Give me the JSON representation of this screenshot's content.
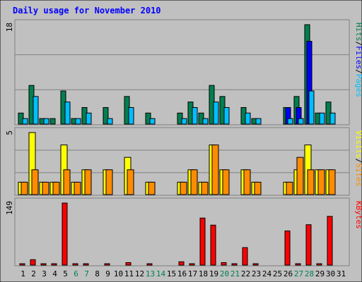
{
  "chart_data": {
    "type": "bar",
    "title": "Daily usage for November 2010",
    "days": [
      1,
      2,
      3,
      4,
      5,
      6,
      7,
      8,
      9,
      10,
      11,
      12,
      13,
      14,
      15,
      16,
      17,
      18,
      19,
      20,
      21,
      22,
      23,
      24,
      25,
      26,
      27,
      28,
      29,
      30,
      31
    ],
    "weekend_days": [
      6,
      7,
      13,
      14,
      20,
      21,
      27,
      28
    ],
    "panels": [
      {
        "id": "top",
        "ymax": 18,
        "ymax_label": "18",
        "series": [
          {
            "name": "Hits",
            "color": "#007f4f",
            "values": [
              2,
              7,
              1,
              1,
              6,
              1,
              3,
              0,
              3,
              0,
              5,
              0,
              2,
              0,
              0,
              2,
              4,
              2,
              7,
              5,
              0,
              3,
              1,
              0,
              0,
              3,
              5,
              18,
              2,
              4,
              0
            ]
          },
          {
            "name": "Files",
            "color": "#0000ff",
            "values": [
              0,
              0,
              0,
              0,
              0,
              0,
              0,
              0,
              0,
              0,
              0,
              0,
              0,
              0,
              0,
              0,
              0,
              0,
              0,
              0,
              0,
              0,
              0,
              0,
              0,
              3,
              3,
              15,
              0,
              0,
              0
            ]
          },
          {
            "name": "Pages",
            "color": "#00bfff",
            "values": [
              1,
              5,
              1,
              0,
              4,
              1,
              2,
              0,
              1,
              0,
              3,
              0,
              1,
              0,
              0,
              1,
              3,
              1,
              4,
              3,
              0,
              2,
              1,
              0,
              0,
              1,
              1,
              6,
              2,
              2,
              0
            ]
          }
        ],
        "legend": [
          {
            "text": "Hits",
            "color": "#007f4f"
          },
          {
            "text": "/",
            "color": "#000000"
          },
          {
            "text": "Files",
            "color": "#0000ff"
          },
          {
            "text": "/",
            "color": "#000000"
          },
          {
            "text": "Pages",
            "color": "#00bfff"
          }
        ]
      },
      {
        "id": "mid",
        "ymax": 5,
        "ymax_label": "5",
        "series": [
          {
            "name": "Visits",
            "color": "#ffff00",
            "values": [
              1,
              5,
              1,
              1,
              4,
              1,
              2,
              0,
              2,
              0,
              3,
              0,
              1,
              0,
              0,
              1,
              2,
              1,
              4,
              2,
              0,
              2,
              1,
              0,
              0,
              1,
              2,
              4,
              2,
              2,
              0
            ]
          },
          {
            "name": "Sites",
            "color": "#ff8c00",
            "values": [
              1,
              2,
              1,
              1,
              2,
              1,
              2,
              0,
              2,
              0,
              2,
              0,
              1,
              0,
              0,
              1,
              2,
              1,
              4,
              2,
              0,
              2,
              1,
              0,
              0,
              1,
              3,
              2,
              2,
              2,
              0
            ]
          }
        ],
        "legend": [
          {
            "text": "Visits",
            "color": "#ffff00"
          },
          {
            "text": "/",
            "color": "#000000"
          },
          {
            "text": "Sites",
            "color": "#ff8c00"
          }
        ]
      },
      {
        "id": "bot",
        "ymax": 149,
        "ymax_label": "149",
        "series": [
          {
            "name": "KBytes",
            "color": "#ff0000",
            "values": [
              3,
              13,
              3,
              3,
              149,
              3,
              3,
              0,
              3,
              0,
              6,
              0,
              3,
              0,
              0,
              8,
              3,
              113,
              96,
              6,
              3,
              42,
              3,
              0,
              0,
              82,
              3,
              97,
              3,
              117,
              0
            ]
          }
        ],
        "legend": [
          {
            "text": "KBytes",
            "color": "#ff0000"
          }
        ]
      }
    ]
  }
}
